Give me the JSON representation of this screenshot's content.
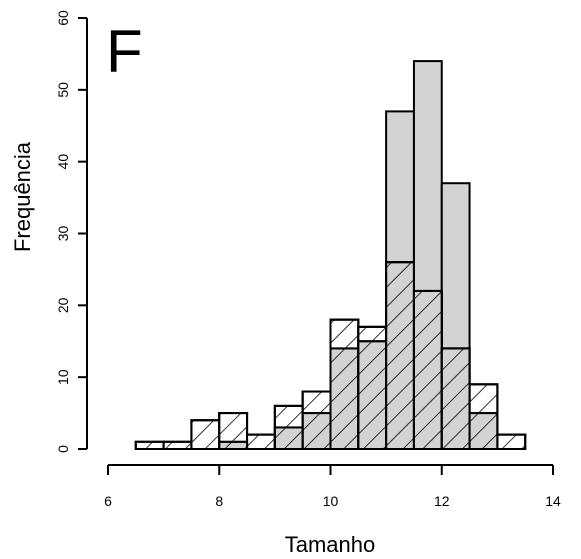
{
  "chart_data": {
    "type": "bar",
    "panel_label": "F",
    "xlabel": "Tamanho",
    "ylabel": "Frequência",
    "xlim": [
      6,
      14
    ],
    "ylim": [
      0,
      60
    ],
    "x_ticks": [
      "6",
      "8",
      "10",
      "12",
      "14"
    ],
    "y_ticks": [
      "0",
      "10",
      "20",
      "30",
      "40",
      "50",
      "60"
    ],
    "bin_width": 0.5,
    "bin_starts": [
      6.5,
      7.0,
      7.5,
      8.0,
      8.5,
      9.0,
      9.5,
      10.0,
      10.5,
      11.0,
      11.5,
      12.0,
      12.5,
      13.0
    ],
    "series": [
      {
        "fill": "#d3d3d3",
        "pattern": "solid",
        "values": [
          1,
          1,
          4,
          5,
          2,
          6,
          8,
          18,
          17,
          47,
          54,
          37,
          9,
          2
        ]
      },
      {
        "fill": "#ffffff",
        "pattern": "hatched",
        "values": [
          1,
          1,
          4,
          5,
          2,
          6,
          8,
          18,
          17,
          26,
          22,
          14,
          9,
          2
        ]
      },
      {
        "fill": "#d3d3d3",
        "pattern": "hatched",
        "values": [
          0,
          0,
          0,
          1,
          0,
          3,
          5,
          14,
          15,
          26,
          22,
          14,
          5,
          0
        ]
      }
    ],
    "grid": false,
    "legend": "none"
  }
}
